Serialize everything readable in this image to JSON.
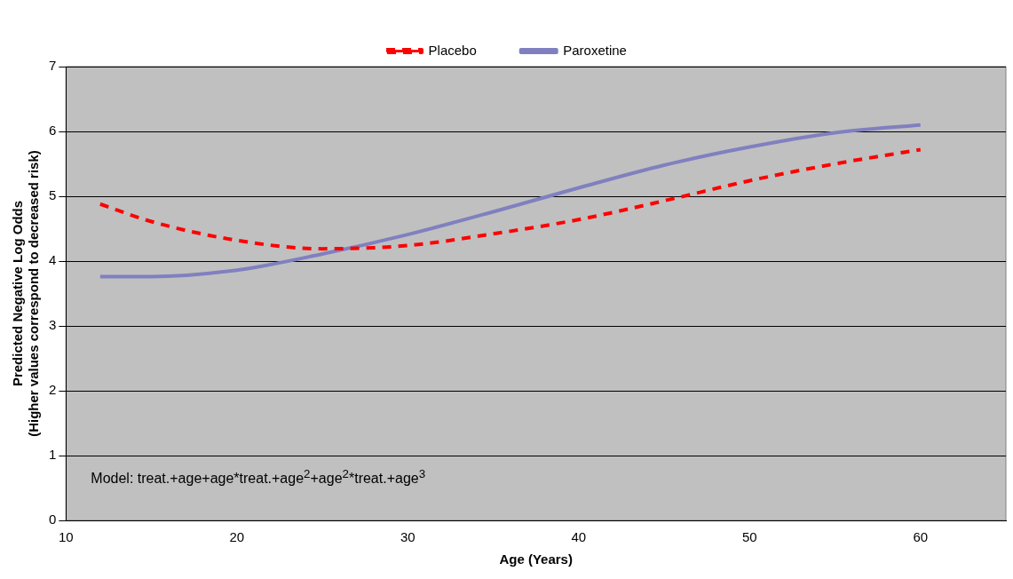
{
  "chart_data": {
    "type": "line",
    "xlabel": "Age (Years)",
    "ylabel": "Predicted Negative Log Odds\n(Higher values correspond to decreased risk)",
    "x": [
      12,
      15,
      20,
      25,
      30,
      35,
      40,
      45,
      50,
      55,
      60
    ],
    "series": [
      {
        "name": "Placebo",
        "color": "#ff0000",
        "line_style": "dashed",
        "values": [
          4.88,
          4.61,
          4.32,
          4.19,
          4.24,
          4.42,
          4.64,
          4.93,
          5.24,
          5.5,
          5.72
        ]
      },
      {
        "name": "Paroxetine",
        "color": "#8080c0",
        "line_style": "solid",
        "values": [
          3.76,
          3.76,
          3.86,
          4.11,
          4.41,
          4.76,
          5.13,
          5.48,
          5.76,
          5.98,
          6.1
        ]
      }
    ],
    "xlim": [
      10,
      65
    ],
    "xticks": [
      10,
      20,
      30,
      40,
      50,
      60
    ],
    "ylim": [
      0,
      7
    ],
    "yticks": [
      0,
      1,
      2,
      3,
      4,
      5,
      6,
      7
    ],
    "grid": "y",
    "legend": "top",
    "marker": "none",
    "annotations": [
      {
        "text": "Model: treat.+age+age*treat.+age$^{2}$+age$^{2}$*treat.+age$^{3}$"
      }
    ]
  }
}
